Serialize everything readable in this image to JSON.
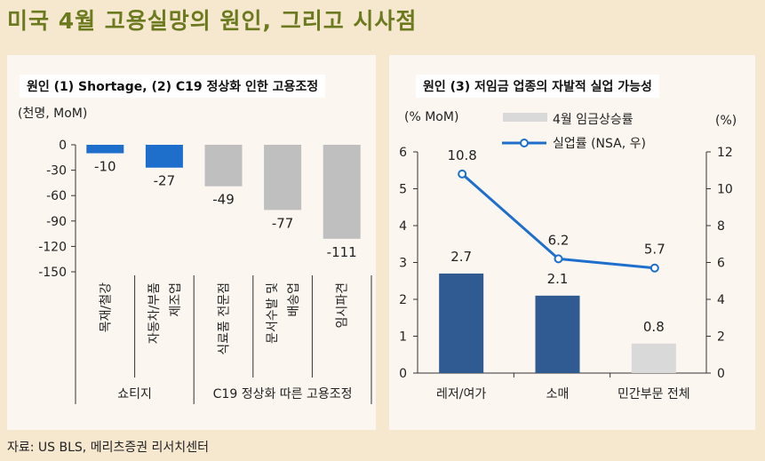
{
  "title": "미국 4월 고용실망의 원인, 그리고 시사점",
  "source": "자료: US BLS, 메리츠증권 리서치센터",
  "chart_data": [
    {
      "type": "bar",
      "title": "원인 (1) Shortage, (2) C19 정상화 인한 고용조정",
      "ylabel": "(천명, MoM)",
      "categories": [
        "목재/철강",
        "자동차/부품 제조업",
        "식료품 전문점",
        "문서수발 및 배송업",
        "임시파견"
      ],
      "category_lines": [
        [
          "목재/철강"
        ],
        [
          "자동차/부품",
          "제조업"
        ],
        [
          "식료품 전문점"
        ],
        [
          "문서수발 및",
          "배송업"
        ],
        [
          "임시파견"
        ]
      ],
      "values": [
        -10,
        -27,
        -49,
        -77,
        -111
      ],
      "data_labels": [
        "-10",
        "-27",
        "-49",
        "-77",
        "-111"
      ],
      "colors": [
        "#1e6fcc",
        "#1e6fcc",
        "#bfbfbf",
        "#bfbfbf",
        "#bfbfbf"
      ],
      "groups": [
        {
          "label": "쇼티지",
          "count": 2
        },
        {
          "label": "C19 정상화 따른 고용조정",
          "count": 3
        }
      ],
      "ylim": [
        -150,
        0
      ],
      "yticks": [
        0,
        -30,
        -60,
        -90,
        -120,
        -150
      ]
    },
    {
      "type": "bar+line",
      "title": "원인 (3)  저임금 업종의 자발적 실업 가능성",
      "ylabel_left": "(% MoM)",
      "ylabel_right": "(%)",
      "categories": [
        "레저/여가",
        "소매",
        "민간부문 전체"
      ],
      "series": [
        {
          "name": "4월 임금상승률",
          "type": "bar",
          "axis": "left",
          "values": [
            2.7,
            2.1,
            0.8
          ],
          "labels": [
            "2.7",
            "2.1",
            "0.8"
          ],
          "colors": [
            "#2f5b92",
            "#2f5b92",
            "#d9d9d9"
          ]
        },
        {
          "name": "실업률 (NSA, 우)",
          "type": "line",
          "axis": "right",
          "values": [
            10.8,
            6.2,
            5.7
          ],
          "labels": [
            "10.8",
            "6.2",
            "5.7"
          ],
          "color": "#1e6fcc"
        }
      ],
      "ylim_left": [
        0,
        6
      ],
      "yticks_left": [
        0,
        1,
        2,
        3,
        4,
        5,
        6
      ],
      "ylim_right": [
        0,
        12
      ],
      "yticks_right": [
        0,
        2,
        4,
        6,
        8,
        10,
        12
      ]
    }
  ]
}
